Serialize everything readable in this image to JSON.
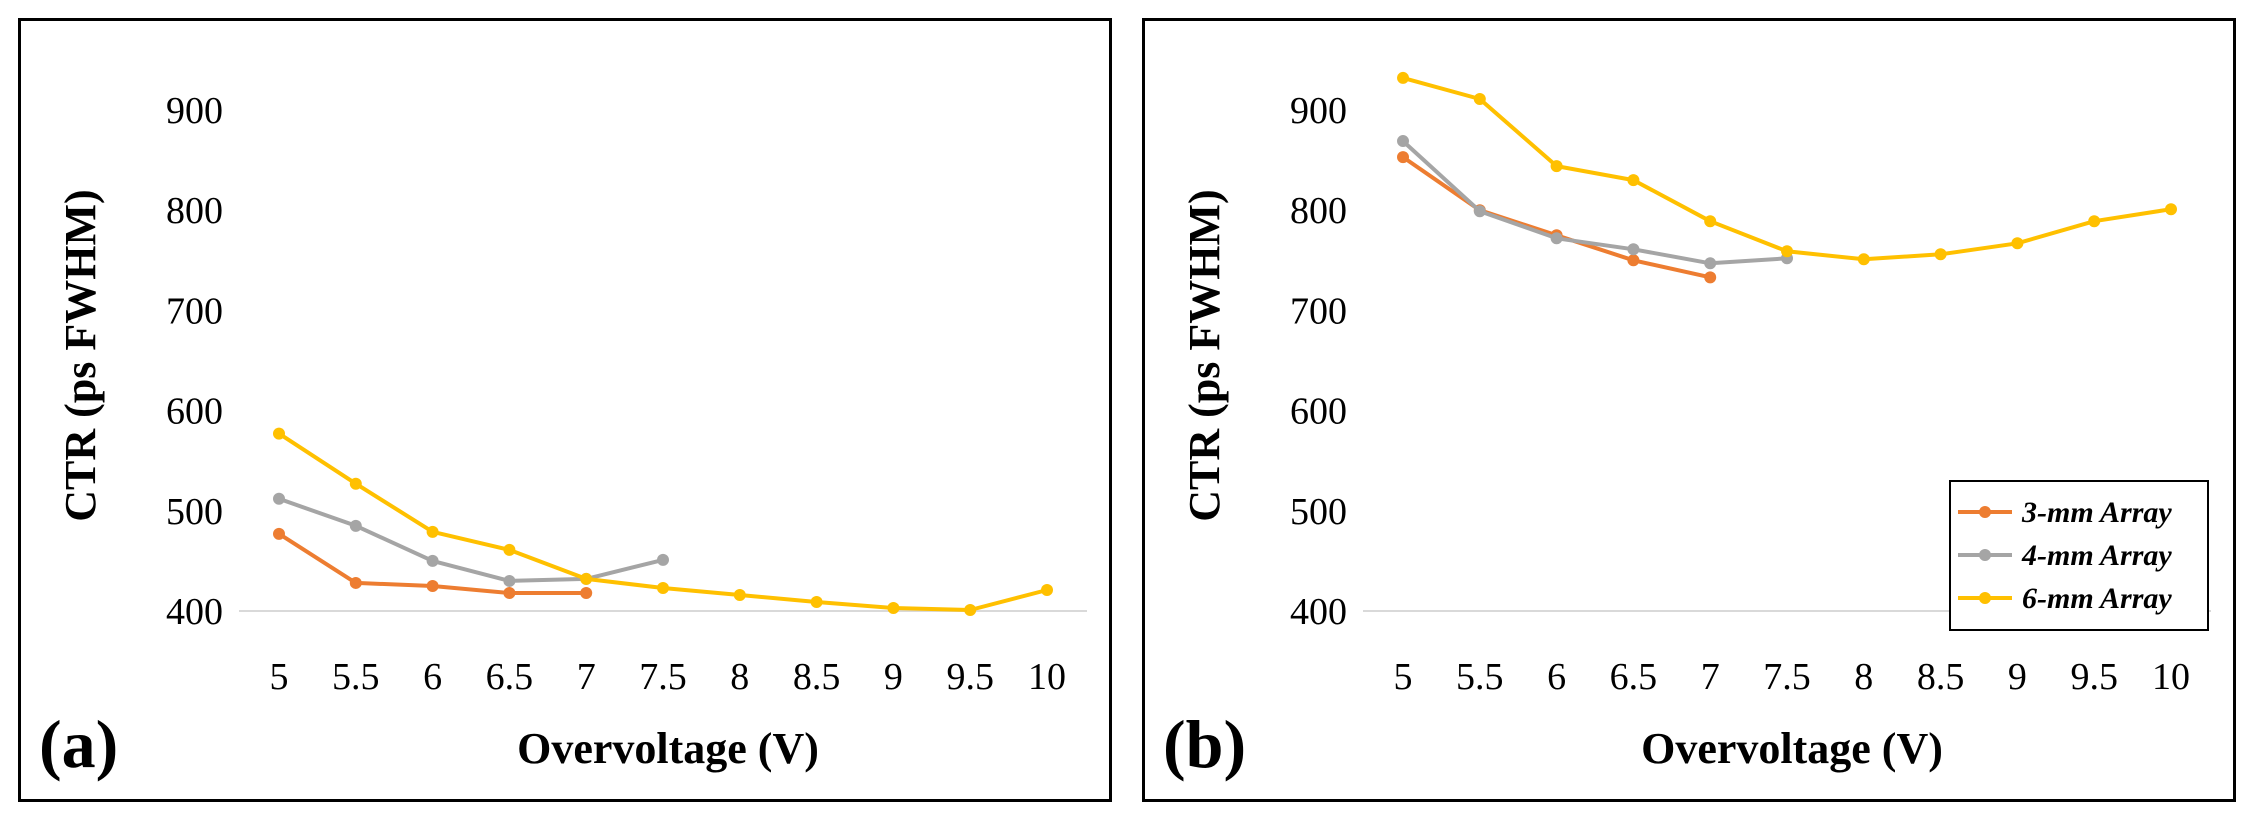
{
  "chart_data": [
    {
      "type": "line",
      "panel_label": "(a)",
      "title": "",
      "xlabel": "Overvoltage (V)",
      "ylabel": "CTR (ps FWHM)",
      "x_ticks": [
        "5",
        "5.5",
        "6",
        "6.5",
        "7",
        "7.5",
        "8",
        "8.5",
        "9",
        "9.5",
        "10"
      ],
      "y_ticks": [
        "400",
        "500",
        "600",
        "700",
        "800",
        "900"
      ],
      "ylim": [
        400,
        900
      ],
      "xlim": [
        5,
        10
      ],
      "legend": false,
      "grid": "baseline only",
      "series": [
        {
          "name": "3-mm Array",
          "color": "#ed7d31",
          "x": [
            5,
            5.5,
            6,
            6.5,
            7
          ],
          "y": [
            477,
            428,
            425,
            418,
            418
          ]
        },
        {
          "name": "4-mm Array",
          "color": "#a5a5a5",
          "x": [
            5,
            5.5,
            6,
            6.5,
            7,
            7.5
          ],
          "y": [
            512,
            485,
            450,
            430,
            432,
            451
          ]
        },
        {
          "name": "6-mm Array",
          "color": "#ffc000",
          "x": [
            5,
            5.5,
            6,
            6.5,
            7,
            7.5,
            8,
            8.5,
            9,
            9.5,
            10
          ],
          "y": [
            577,
            527,
            479,
            461,
            432,
            423,
            416,
            409,
            403,
            401,
            421
          ]
        }
      ]
    },
    {
      "type": "line",
      "panel_label": "(b)",
      "title": "",
      "xlabel": "Overvoltage (V)",
      "ylabel": "CTR (ps FWHM)",
      "x_ticks": [
        "5",
        "5.5",
        "6",
        "6.5",
        "7",
        "7.5",
        "8",
        "8.5",
        "9",
        "9.5",
        "10"
      ],
      "y_ticks": [
        "400",
        "500",
        "600",
        "700",
        "800",
        "900"
      ],
      "ylim": [
        400,
        900
      ],
      "xlim": [
        5,
        10
      ],
      "legend": true,
      "legend_position": "bottom-right",
      "grid": "baseline only",
      "series": [
        {
          "name": "3-mm Array",
          "color": "#ed7d31",
          "x": [
            5,
            5.5,
            6,
            6.5,
            7
          ],
          "y": [
            853,
            800,
            775,
            750,
            733
          ]
        },
        {
          "name": "4-mm Array",
          "color": "#a5a5a5",
          "x": [
            5,
            5.5,
            6,
            6.5,
            7,
            7.5
          ],
          "y": [
            869,
            799,
            772,
            761,
            747,
            752
          ]
        },
        {
          "name": "6-mm Array",
          "color": "#ffc000",
          "x": [
            5,
            5.5,
            6,
            6.5,
            7,
            7.5,
            8,
            8.5,
            9,
            9.5,
            10
          ],
          "y": [
            932,
            911,
            844,
            830,
            789,
            759,
            751,
            756,
            767,
            789,
            801
          ]
        }
      ]
    }
  ]
}
